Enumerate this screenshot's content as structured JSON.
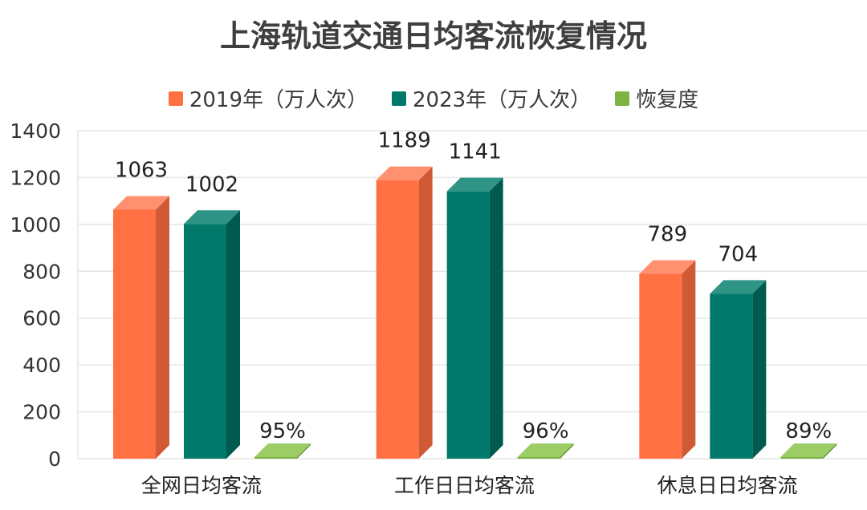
{
  "chart_data": {
    "type": "bar",
    "title": "上海轨道交通日均客流恢复情况",
    "categories": [
      "全网日均客流",
      "工作日日均客流",
      "休息日日均客流"
    ],
    "series": [
      {
        "name": "2019年（万人次）",
        "values": [
          1063,
          1189,
          789
        ],
        "labels": [
          "1063",
          "1189",
          "789"
        ],
        "color": "#FF7043",
        "side": "#D05A35",
        "top": "#FF9070"
      },
      {
        "name": "2023年（万人次）",
        "values": [
          1002,
          1141,
          704
        ],
        "labels": [
          "1002",
          "1141",
          "704"
        ],
        "color": "#00796B",
        "side": "#005A4F",
        "top": "#2E9485"
      },
      {
        "name": "恢复度",
        "values": [
          0.95,
          0.96,
          0.89
        ],
        "labels": [
          "95%",
          "96%",
          "89%"
        ],
        "color": "#7CB342",
        "side": "#5E8C2E",
        "top": "#9CCC65"
      }
    ],
    "yticks": [
      "0",
      "200",
      "400",
      "600",
      "800",
      "1000",
      "1200",
      "1400"
    ],
    "ylim": [
      0,
      1400
    ],
    "grid": true,
    "legend_position": "top"
  }
}
